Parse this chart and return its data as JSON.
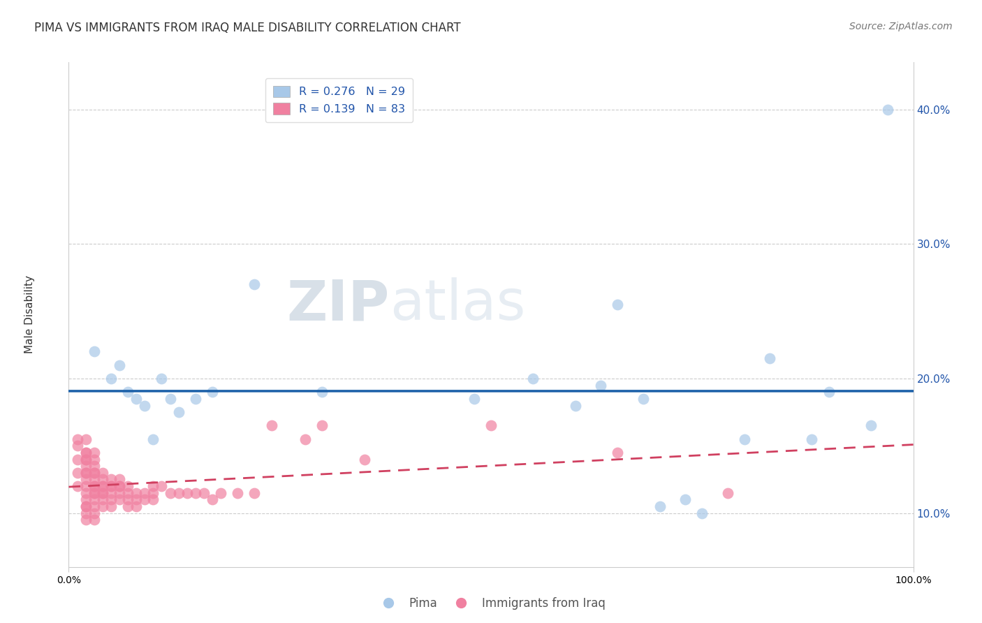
{
  "title": "PIMA VS IMMIGRANTS FROM IRAQ MALE DISABILITY CORRELATION CHART",
  "source": "Source: ZipAtlas.com",
  "ylabel": "Male Disability",
  "y_tick_values": [
    0.1,
    0.2,
    0.3,
    0.4
  ],
  "xlim": [
    0.0,
    1.0
  ],
  "ylim": [
    0.06,
    0.435
  ],
  "color_pima": "#a8c8e8",
  "color_iraq": "#f080a0",
  "color_pima_line": "#1a5fa8",
  "color_iraq_line": "#d04060",
  "watermark_zip": "ZIP",
  "watermark_atlas": "atlas",
  "pima_x": [
    0.03,
    0.05,
    0.06,
    0.07,
    0.08,
    0.09,
    0.1,
    0.11,
    0.12,
    0.13,
    0.15,
    0.17,
    0.22,
    0.3,
    0.48,
    0.55,
    0.6,
    0.63,
    0.65,
    0.68,
    0.7,
    0.73,
    0.75,
    0.8,
    0.83,
    0.88,
    0.9,
    0.95,
    0.97
  ],
  "pima_y": [
    0.22,
    0.2,
    0.21,
    0.19,
    0.185,
    0.18,
    0.155,
    0.2,
    0.185,
    0.175,
    0.185,
    0.19,
    0.27,
    0.19,
    0.185,
    0.2,
    0.18,
    0.195,
    0.255,
    0.185,
    0.105,
    0.11,
    0.1,
    0.155,
    0.215,
    0.155,
    0.19,
    0.165,
    0.4
  ],
  "iraq_x": [
    0.01,
    0.01,
    0.01,
    0.01,
    0.01,
    0.02,
    0.02,
    0.02,
    0.02,
    0.02,
    0.02,
    0.02,
    0.02,
    0.02,
    0.02,
    0.02,
    0.02,
    0.02,
    0.02,
    0.02,
    0.02,
    0.03,
    0.03,
    0.03,
    0.03,
    0.03,
    0.03,
    0.03,
    0.03,
    0.03,
    0.03,
    0.03,
    0.03,
    0.03,
    0.03,
    0.04,
    0.04,
    0.04,
    0.04,
    0.04,
    0.04,
    0.04,
    0.04,
    0.05,
    0.05,
    0.05,
    0.05,
    0.05,
    0.05,
    0.06,
    0.06,
    0.06,
    0.06,
    0.06,
    0.07,
    0.07,
    0.07,
    0.07,
    0.08,
    0.08,
    0.08,
    0.09,
    0.09,
    0.1,
    0.1,
    0.1,
    0.11,
    0.12,
    0.13,
    0.14,
    0.15,
    0.16,
    0.17,
    0.18,
    0.2,
    0.22,
    0.24,
    0.28,
    0.3,
    0.35,
    0.5,
    0.65,
    0.78
  ],
  "iraq_y": [
    0.14,
    0.15,
    0.155,
    0.13,
    0.12,
    0.13,
    0.135,
    0.14,
    0.145,
    0.12,
    0.125,
    0.115,
    0.11,
    0.1,
    0.105,
    0.13,
    0.155,
    0.14,
    0.145,
    0.105,
    0.095,
    0.13,
    0.125,
    0.12,
    0.115,
    0.11,
    0.105,
    0.1,
    0.095,
    0.135,
    0.14,
    0.145,
    0.12,
    0.115,
    0.13,
    0.12,
    0.115,
    0.11,
    0.105,
    0.13,
    0.125,
    0.12,
    0.115,
    0.115,
    0.12,
    0.125,
    0.11,
    0.105,
    0.12,
    0.115,
    0.12,
    0.125,
    0.11,
    0.12,
    0.115,
    0.12,
    0.11,
    0.105,
    0.115,
    0.11,
    0.105,
    0.115,
    0.11,
    0.12,
    0.115,
    0.11,
    0.12,
    0.115,
    0.115,
    0.115,
    0.115,
    0.115,
    0.11,
    0.115,
    0.115,
    0.115,
    0.165,
    0.155,
    0.165,
    0.14,
    0.165,
    0.145,
    0.115
  ]
}
